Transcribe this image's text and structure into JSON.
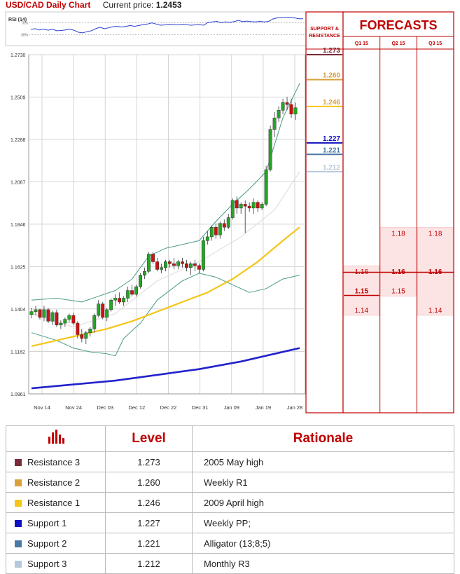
{
  "header": {
    "title": "USD/CAD Daily Chart",
    "price_label": "Current price:",
    "price_value": "1.2453"
  },
  "panel": {
    "sr_label_1": "SUPPORT &",
    "sr_label_2": "RESISTANCE",
    "forecasts_title": "FORECASTS"
  },
  "colors": {
    "res3": "#7b2c3a",
    "res2": "#d8a13a",
    "res1": "#f5c518",
    "sup1": "#1010c0",
    "sup2": "#4a79a8",
    "sup3": "#b6c8dc",
    "accent": "#c00000",
    "bull": "#22a822",
    "bear": "#cc1111"
  },
  "chart_data": [
    {
      "type": "candlestick",
      "ylim": [
        1.0961,
        1.273
      ],
      "y_ticks": [
        "1.2730",
        "1.2509",
        "1.2288",
        "1.2067",
        "1.1846",
        "1.1625",
        "1.1404",
        "1.1182",
        "1.0961"
      ],
      "x_ticks": [
        "Nov 14",
        "Nov 24",
        "Dec 03",
        "Dec 12",
        "Dec 22",
        "Dec 31",
        "Jan 09",
        "Jan 19",
        "Jan 28"
      ],
      "candles": [
        [
          1.1375,
          1.141,
          1.1355,
          1.139
        ],
        [
          1.139,
          1.142,
          1.137,
          1.14
        ],
        [
          1.14,
          1.1405,
          1.135,
          1.136
        ],
        [
          1.136,
          1.142,
          1.134,
          1.14
        ],
        [
          1.14,
          1.141,
          1.133,
          1.134
        ],
        [
          1.134,
          1.1395,
          1.132,
          1.1385
        ],
        [
          1.1385,
          1.14,
          1.131,
          1.132
        ],
        [
          1.132,
          1.1345,
          1.13,
          1.133
        ],
        [
          1.133,
          1.136,
          1.131,
          1.135
        ],
        [
          1.135,
          1.138,
          1.133,
          1.137
        ],
        [
          1.137,
          1.1385,
          1.132,
          1.133
        ],
        [
          1.133,
          1.134,
          1.125,
          1.127
        ],
        [
          1.127,
          1.13,
          1.123,
          1.125
        ],
        [
          1.125,
          1.129,
          1.122,
          1.128
        ],
        [
          1.128,
          1.131,
          1.126,
          1.13
        ],
        [
          1.13,
          1.138,
          1.128,
          1.137
        ],
        [
          1.137,
          1.145,
          1.136,
          1.143
        ],
        [
          1.143,
          1.144,
          1.135,
          1.136
        ],
        [
          1.136,
          1.141,
          1.134,
          1.14
        ],
        [
          1.14,
          1.146,
          1.139,
          1.145
        ],
        [
          1.145,
          1.148,
          1.142,
          1.146
        ],
        [
          1.146,
          1.149,
          1.143,
          1.144
        ],
        [
          1.144,
          1.147,
          1.142,
          1.146
        ],
        [
          1.146,
          1.152,
          1.144,
          1.15
        ],
        [
          1.15,
          1.153,
          1.147,
          1.148
        ],
        [
          1.148,
          1.153,
          1.147,
          1.152
        ],
        [
          1.152,
          1.159,
          1.151,
          1.158
        ],
        [
          1.158,
          1.162,
          1.156,
          1.16
        ],
        [
          1.16,
          1.17,
          1.159,
          1.169
        ],
        [
          1.169,
          1.17,
          1.164,
          1.165
        ],
        [
          1.165,
          1.167,
          1.16,
          1.161
        ],
        [
          1.161,
          1.164,
          1.159,
          1.162
        ],
        [
          1.162,
          1.166,
          1.16,
          1.165
        ],
        [
          1.165,
          1.166,
          1.162,
          1.164
        ],
        [
          1.164,
          1.167,
          1.161,
          1.163
        ],
        [
          1.163,
          1.166,
          1.161,
          1.165
        ],
        [
          1.165,
          1.167,
          1.162,
          1.164
        ],
        [
          1.164,
          1.166,
          1.16,
          1.162
        ],
        [
          1.162,
          1.165,
          1.158,
          1.164
        ],
        [
          1.164,
          1.166,
          1.16,
          1.163
        ],
        [
          1.163,
          1.164,
          1.159,
          1.161
        ],
        [
          1.161,
          1.178,
          1.16,
          1.176
        ],
        [
          1.176,
          1.181,
          1.174,
          1.178
        ],
        [
          1.178,
          1.184,
          1.176,
          1.183
        ],
        [
          1.183,
          1.185,
          1.177,
          1.179
        ],
        [
          1.179,
          1.186,
          1.177,
          1.185
        ],
        [
          1.185,
          1.187,
          1.181,
          1.183
        ],
        [
          1.183,
          1.19,
          1.182,
          1.188
        ],
        [
          1.188,
          1.198,
          1.187,
          1.197
        ],
        [
          1.197,
          1.199,
          1.19,
          1.193
        ],
        [
          1.193,
          1.196,
          1.19,
          1.195
        ],
        [
          1.195,
          1.197,
          1.18,
          1.194
        ],
        [
          1.194,
          1.196,
          1.191,
          1.193
        ],
        [
          1.193,
          1.198,
          1.19,
          1.196
        ],
        [
          1.196,
          1.197,
          1.191,
          1.193
        ],
        [
          1.193,
          1.196,
          1.192,
          1.195
        ],
        [
          1.195,
          1.215,
          1.194,
          1.213
        ],
        [
          1.213,
          1.236,
          1.212,
          1.234
        ],
        [
          1.234,
          1.243,
          1.23,
          1.24
        ],
        [
          1.24,
          1.246,
          1.238,
          1.244
        ],
        [
          1.244,
          1.25,
          1.242,
          1.248
        ],
        [
          1.248,
          1.251,
          1.244,
          1.247
        ],
        [
          1.247,
          1.25,
          1.24,
          1.242
        ],
        [
          1.242,
          1.248,
          1.239,
          1.2453
        ]
      ],
      "sma_yellow": [
        [
          0,
          1.121
        ],
        [
          6,
          1.124
        ],
        [
          12,
          1.127
        ],
        [
          18,
          1.13
        ],
        [
          24,
          1.134
        ],
        [
          30,
          1.139
        ],
        [
          36,
          1.144
        ],
        [
          42,
          1.149
        ],
        [
          48,
          1.156
        ],
        [
          54,
          1.165
        ],
        [
          60,
          1.176
        ],
        [
          64,
          1.183
        ]
      ],
      "sma_blue": [
        [
          0,
          1.099
        ],
        [
          10,
          1.101
        ],
        [
          20,
          1.103
        ],
        [
          30,
          1.106
        ],
        [
          40,
          1.109
        ],
        [
          50,
          1.113
        ],
        [
          58,
          1.117
        ],
        [
          64,
          1.12
        ]
      ],
      "bb_upper": [
        [
          0,
          1.145
        ],
        [
          6,
          1.146
        ],
        [
          12,
          1.144
        ],
        [
          16,
          1.147
        ],
        [
          20,
          1.15
        ],
        [
          24,
          1.156
        ],
        [
          28,
          1.168
        ],
        [
          32,
          1.172
        ],
        [
          36,
          1.174
        ],
        [
          40,
          1.176
        ],
        [
          44,
          1.186
        ],
        [
          48,
          1.195
        ],
        [
          52,
          1.203
        ],
        [
          56,
          1.212
        ],
        [
          60,
          1.24
        ],
        [
          64,
          1.258
        ]
      ],
      "bb_lower": [
        [
          0,
          1.128
        ],
        [
          6,
          1.124
        ],
        [
          10,
          1.12
        ],
        [
          14,
          1.118
        ],
        [
          18,
          1.117
        ],
        [
          20,
          1.116
        ],
        [
          22,
          1.125
        ],
        [
          26,
          1.133
        ],
        [
          30,
          1.145
        ],
        [
          36,
          1.155
        ],
        [
          40,
          1.159
        ],
        [
          44,
          1.157
        ],
        [
          48,
          1.153
        ],
        [
          52,
          1.149
        ],
        [
          56,
          1.151
        ],
        [
          60,
          1.156
        ],
        [
          64,
          1.158
        ]
      ],
      "bb_middle": [
        [
          0,
          1.138
        ],
        [
          10,
          1.131
        ],
        [
          20,
          1.138
        ],
        [
          30,
          1.155
        ],
        [
          40,
          1.165
        ],
        [
          50,
          1.178
        ],
        [
          58,
          1.192
        ],
        [
          64,
          1.212
        ]
      ],
      "levels": [
        {
          "value": 1.273,
          "label": "1.273",
          "color": "#7b2c3a"
        },
        {
          "value": 1.26,
          "label": "1.260",
          "color": "#d8a13a"
        },
        {
          "value": 1.246,
          "label": "1.246",
          "color": "#f5c518"
        },
        {
          "value": 1.227,
          "label": "1.227",
          "color": "#1010c0"
        },
        {
          "value": 1.221,
          "label": "1.221",
          "color": "#4a79a8"
        },
        {
          "value": 1.212,
          "label": "1.212",
          "color": "#b6c8dc"
        }
      ]
    },
    {
      "type": "line",
      "title": "RSI (14)",
      "y_ticks": [
        "70%",
        "30%"
      ],
      "ylim": [
        0,
        100
      ],
      "values": [
        48,
        50,
        46,
        49,
        45,
        48,
        43,
        44,
        46,
        48,
        45,
        38,
        36,
        40,
        43,
        50,
        55,
        50,
        53,
        57,
        58,
        56,
        58,
        61,
        58,
        61,
        64,
        66,
        70,
        66,
        62,
        63,
        65,
        64,
        63,
        65,
        64,
        62,
        63,
        64,
        62,
        72,
        73,
        75,
        71,
        73,
        72,
        74,
        78,
        74,
        76,
        74,
        73,
        75,
        73,
        75,
        83,
        87,
        88,
        88,
        89,
        87,
        84,
        84
      ]
    },
    {
      "type": "table",
      "title": "FORECASTS",
      "columns": [
        "Q1 15",
        "Q2 15",
        "Q3 15"
      ],
      "ylim": [
        1.0961,
        1.273
      ],
      "ranges": [
        {
          "col": 0,
          "low": 1.14,
          "high": 1.16,
          "labels": [
            {
              "v": 1.16,
              "t": "1.16"
            },
            {
              "v": 1.15,
              "t": "1.15",
              "bold": true
            },
            {
              "v": 1.14,
              "t": "1.14"
            }
          ],
          "mark": 1.15
        },
        {
          "col": 1,
          "low": 1.15,
          "high": 1.18,
          "labels": [
            {
              "v": 1.18,
              "t": "1.18"
            },
            {
              "v": 1.16,
              "t": "1.16",
              "bold": true
            },
            {
              "v": 1.15,
              "t": "1.15"
            }
          ]
        },
        {
          "col": 2,
          "low": 1.14,
          "high": 1.18,
          "labels": [
            {
              "v": 1.18,
              "t": "1.18"
            },
            {
              "v": 1.16,
              "t": "1.16",
              "bold": true
            },
            {
              "v": 1.14,
              "t": "1.14"
            }
          ]
        }
      ],
      "current_line": 1.1595
    }
  ],
  "table": {
    "header_level": "Level",
    "header_rationale": "Rationale",
    "rows": [
      {
        "name": "Resistance 3",
        "level": "1.273",
        "rationale": "2005 May high",
        "color": "#7b2c3a"
      },
      {
        "name": "Resistance 2",
        "level": "1.260",
        "rationale": "Weekly R1",
        "color": "#d8a13a"
      },
      {
        "name": "Resistance 1",
        "level": "1.246",
        "rationale": "2009 April high",
        "color": "#f5c518"
      },
      {
        "name": "Support 1",
        "level": "1.227",
        "rationale": "Weekly PP;",
        "color": "#1010c0"
      },
      {
        "name": "Support 2",
        "level": "1.221",
        "rationale": "Alligator (13;8;5)",
        "color": "#4a79a8"
      },
      {
        "name": "Support 3",
        "level": "1.212",
        "rationale": "Monthly R3",
        "color": "#b6c8dc"
      }
    ]
  }
}
